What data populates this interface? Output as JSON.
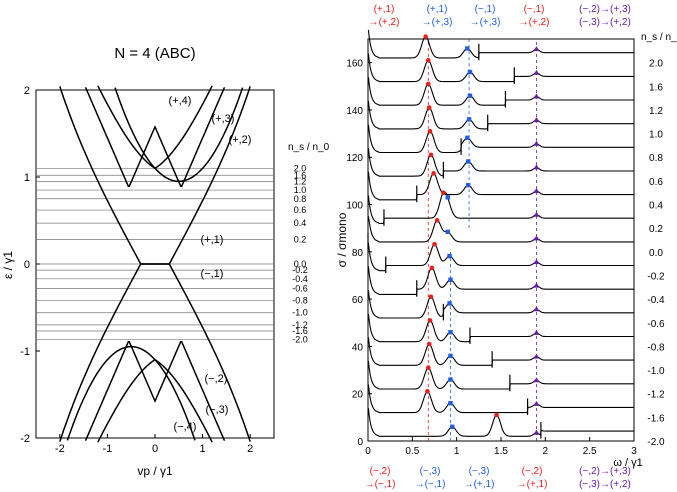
{
  "colors": {
    "red": "#e8201c",
    "blue": "#1f5fe0",
    "purple": "#6a1ba8",
    "black": "#000000"
  },
  "chart_data": [
    {
      "type": "line",
      "title": "N = 4 (ABC)",
      "xlabel": "vp / γ1",
      "ylabel": "ε / γ1",
      "xlim": [
        -2.5,
        2.5
      ],
      "ylim": [
        -2,
        2
      ],
      "xticks": [
        -2,
        -1,
        0,
        1,
        2
      ],
      "yticks": [
        -2,
        -1,
        0,
        1,
        2
      ],
      "band_labels": [
        "(+,4)",
        "(+,3)",
        "(+,2)",
        "(+,1)",
        "(−,1)",
        "(−,2)",
        "(−,3)",
        "(−,4)"
      ],
      "ns_label": "n_s / n_0",
      "fermi_levels": [
        {
          "e": 1.1,
          "ns": "2.0"
        },
        {
          "e": 1.02,
          "ns": "1.6"
        },
        {
          "e": 0.95,
          "ns": "1.2"
        },
        {
          "e": 0.85,
          "ns": "1.0"
        },
        {
          "e": 0.75,
          "ns": "0.8"
        },
        {
          "e": 0.62,
          "ns": "0.6"
        },
        {
          "e": 0.47,
          "ns": "0.4"
        },
        {
          "e": 0.28,
          "ns": "0.2"
        },
        {
          "e": 0.0,
          "ns": "0.0"
        },
        {
          "e": -0.07,
          "ns": "-0.2"
        },
        {
          "e": -0.17,
          "ns": "-0.4"
        },
        {
          "e": -0.28,
          "ns": "-0.6"
        },
        {
          "e": -0.42,
          "ns": "-0.8"
        },
        {
          "e": -0.56,
          "ns": "-1.0"
        },
        {
          "e": -0.7,
          "ns": "-1.2"
        },
        {
          "e": -0.77,
          "ns": "-1.6"
        },
        {
          "e": -0.87,
          "ns": "-2.0"
        }
      ]
    },
    {
      "type": "line",
      "xlabel": "ω / γ1",
      "ylabel": "σ / σmono",
      "xlim": [
        0,
        3
      ],
      "ylim": [
        0,
        170
      ],
      "xticks": [
        "0",
        "0.5",
        "1",
        "1.5",
        "2",
        "2.5",
        "3"
      ],
      "yticks": [
        "0",
        "20",
        "40",
        "60",
        "80",
        "100",
        "120",
        "140",
        "160"
      ],
      "ns_label": "n_s / n_0",
      "series_ns": [
        "2.0",
        "1.6",
        "1.2",
        "1.0",
        "0.8",
        "0.6",
        "0.4",
        "0.2",
        "0.0",
        "-0.2",
        "-0.4",
        "-0.6",
        "-0.8",
        "-1.0",
        "-1.2",
        "-1.6",
        "-2.0"
      ],
      "offsets": [
        160,
        150,
        140,
        130,
        120,
        110,
        100,
        90,
        80,
        70,
        60,
        50,
        40,
        30,
        20,
        10,
        0
      ],
      "thresholds": [
        1.25,
        1.65,
        1.55,
        1.35,
        1.05,
        0.85,
        0.55,
        0.18,
        0.0,
        0.2,
        0.55,
        0.85,
        1.15,
        1.4,
        1.6,
        1.8,
        1.95
      ],
      "red_peaks": [
        0.65,
        0.68,
        0.68,
        0.69,
        0.7,
        0.71,
        0.74,
        0.85,
        0.78,
        0.75,
        0.72,
        0.71,
        0.7,
        0.69,
        0.68,
        0.67,
        1.45
      ],
      "blue_peaks": [
        1.12,
        1.15,
        1.15,
        1.14,
        1.12,
        1.13,
        1.13,
        0.9,
        0.9,
        0.92,
        0.93,
        0.92,
        0.93,
        0.93,
        0.93,
        0.93,
        0.95
      ],
      "purple_peak": 1.9,
      "top_annotations": [
        {
          "line1": "(+,1)",
          "line2": "→(+,2)",
          "color": "red"
        },
        {
          "line1": "(+,1)",
          "line2": "→(+,3)",
          "color": "blue"
        },
        {
          "line1": "(−,1)",
          "line2": "→(+,3)",
          "color": "blue"
        },
        {
          "line1": "(−,1)",
          "line2": "→(+,2)",
          "color": "red"
        },
        {
          "line1": "(−,2)→(+,3)",
          "line2": "(−,3)→(+,2)",
          "color": "purple"
        }
      ],
      "bottom_annotations": [
        {
          "line1": "(−,2)",
          "line2": "→(−,1)",
          "color": "red"
        },
        {
          "line1": "(−,3)",
          "line2": "→(−,1)",
          "color": "blue"
        },
        {
          "line1": "(−,3)",
          "line2": "→(+,1)",
          "color": "blue"
        },
        {
          "line1": "(−,2)",
          "line2": "→(+,1)",
          "color": "red"
        },
        {
          "line1": "(−,2)→(+,3)",
          "line2": "(−,3)→(+,2)",
          "color": "purple"
        }
      ]
    }
  ]
}
